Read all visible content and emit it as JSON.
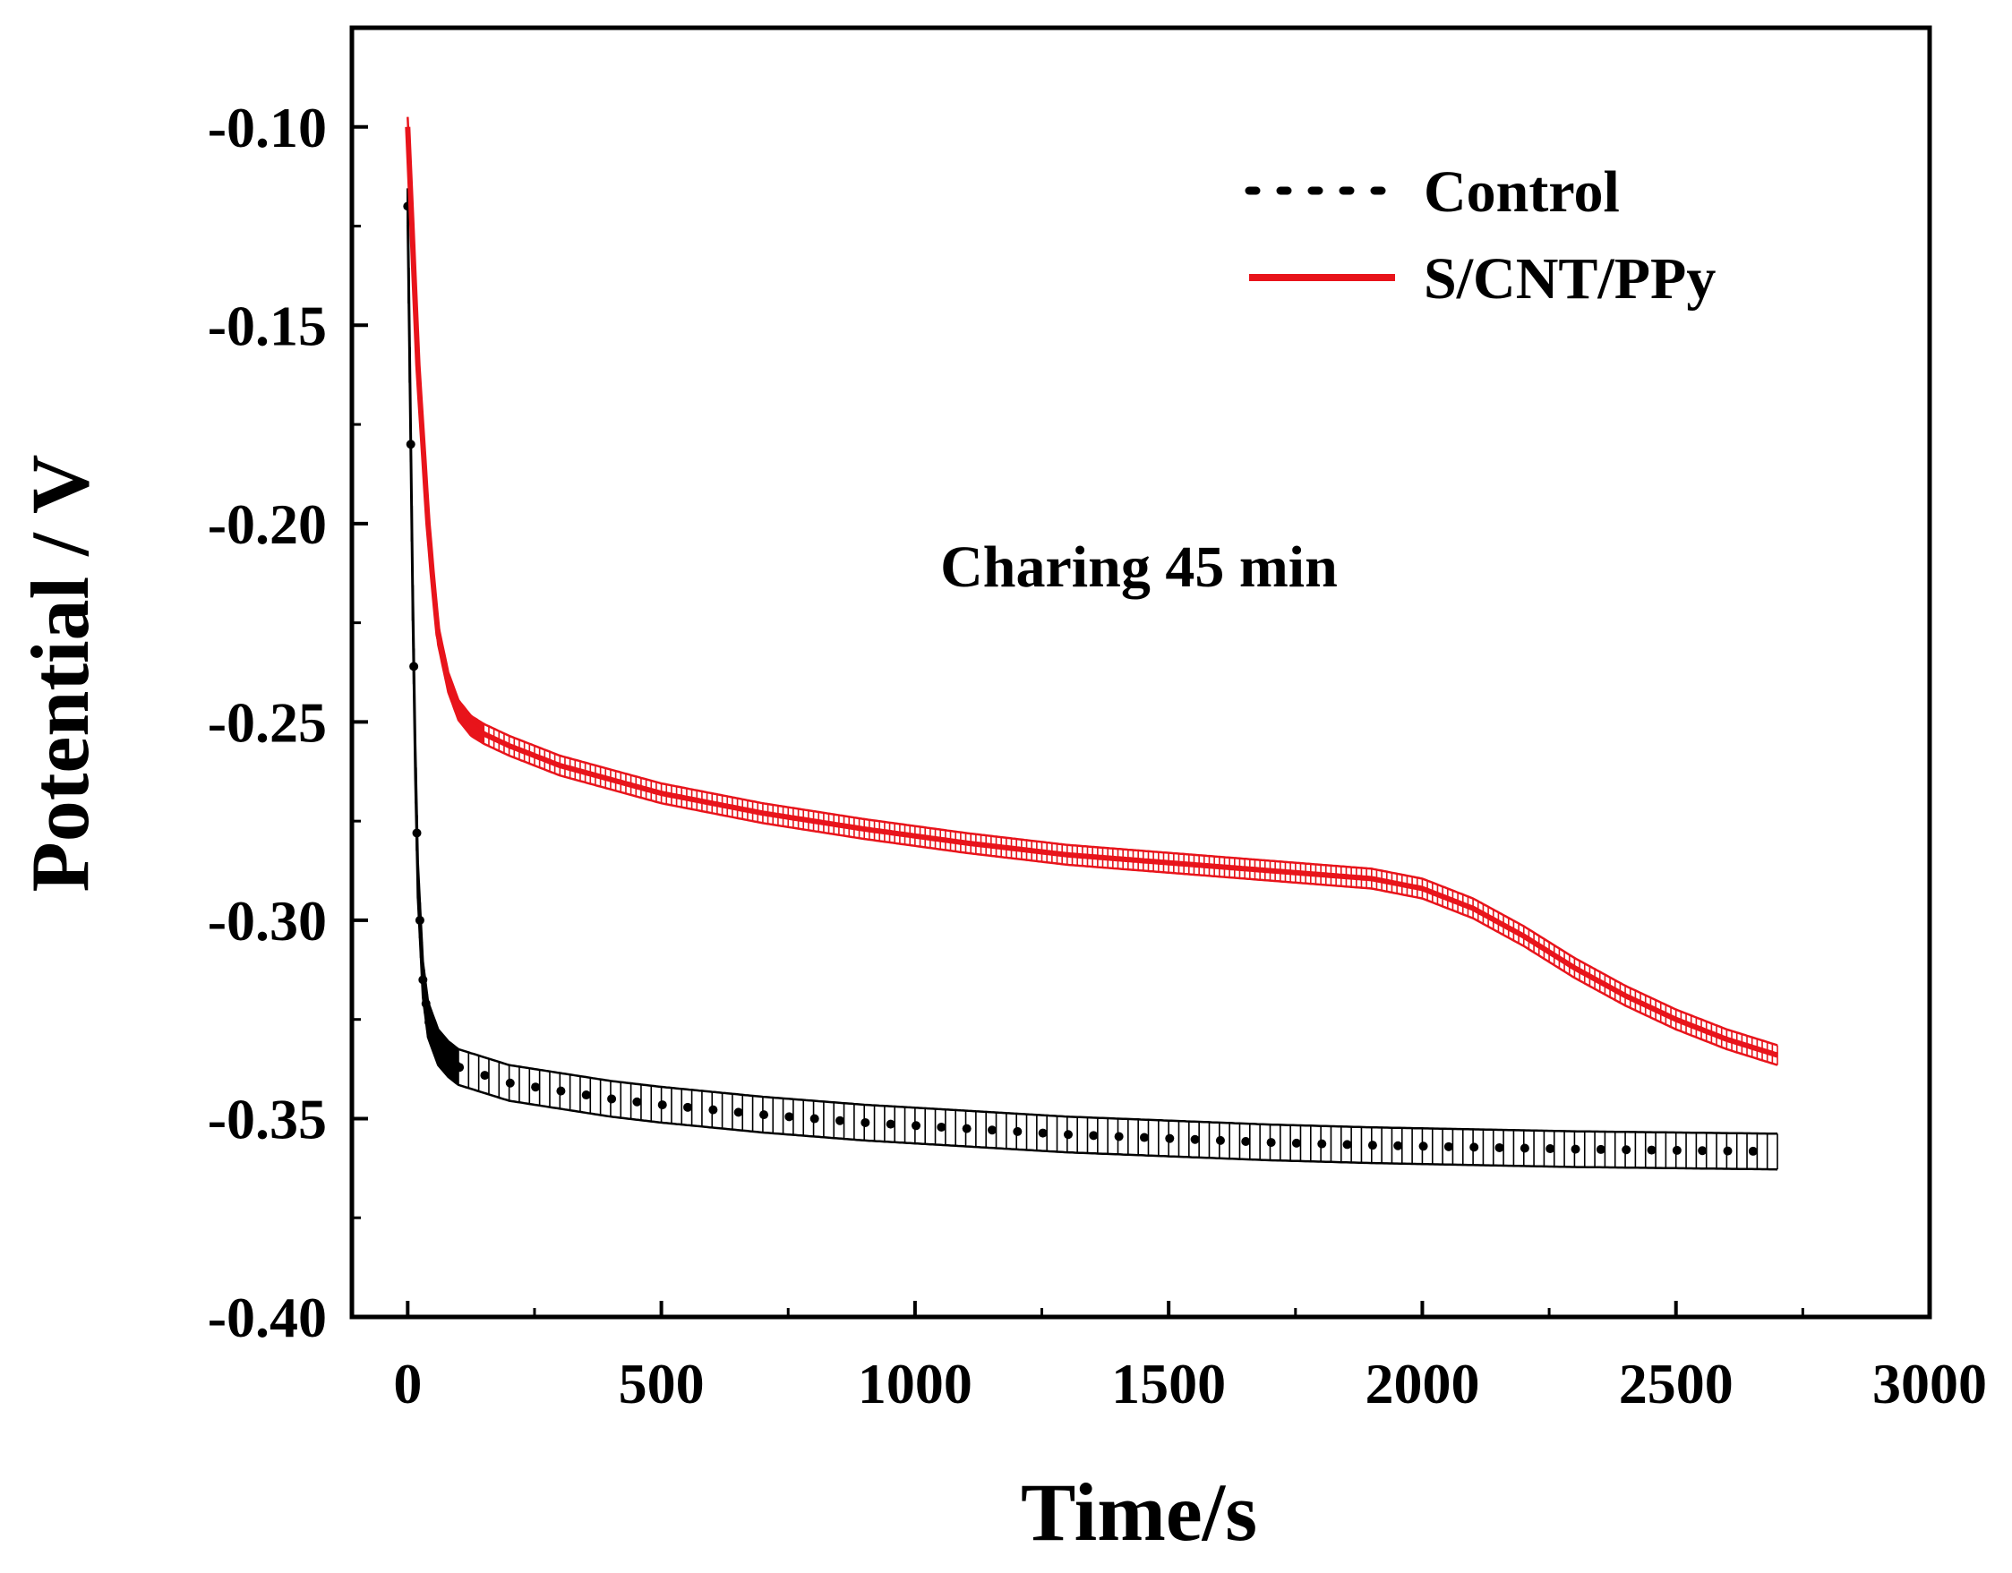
{
  "chart_data": {
    "type": "line",
    "title": "",
    "xlabel": "Time/s",
    "ylabel": "Potential / V",
    "xlim": [
      -110,
      3000
    ],
    "ylim": [
      -0.4,
      -0.075
    ],
    "xticks": [
      0,
      500,
      1000,
      1500,
      2000,
      2500,
      3000
    ],
    "xtick_labels": [
      "0",
      "500",
      "1000",
      "1500",
      "2000",
      "2500",
      "3000"
    ],
    "yticks": [
      -0.4,
      -0.35,
      -0.3,
      -0.25,
      -0.2,
      -0.15,
      -0.1
    ],
    "ytick_labels": [
      "-0.40",
      "-0.35",
      "-0.30",
      "-0.25",
      "-0.20",
      "-0.15",
      "-0.10"
    ],
    "grid": false,
    "legend_position": "top-right",
    "annotation": "Charing 45 min",
    "series": [
      {
        "name": "Control",
        "style": "dotted",
        "color": "#000000",
        "error_band": 0.0045,
        "x": [
          0,
          5,
          10,
          15,
          20,
          30,
          40,
          60,
          80,
          100,
          150,
          200,
          300,
          400,
          500,
          700,
          900,
          1100,
          1300,
          1500,
          1700,
          1900,
          2100,
          2300,
          2500,
          2700
        ],
        "y": [
          -0.12,
          -0.17,
          -0.22,
          -0.26,
          -0.29,
          -0.315,
          -0.325,
          -0.332,
          -0.335,
          -0.337,
          -0.339,
          -0.341,
          -0.343,
          -0.345,
          -0.3465,
          -0.349,
          -0.351,
          -0.3525,
          -0.354,
          -0.355,
          -0.356,
          -0.3567,
          -0.3572,
          -0.3577,
          -0.358,
          -0.3583
        ]
      },
      {
        "name": "S/CNT/PPy",
        "style": "solid",
        "color": "#e8141b",
        "error_band": 0.0025,
        "x": [
          0,
          10,
          20,
          30,
          40,
          50,
          60,
          80,
          100,
          125,
          150,
          200,
          300,
          400,
          500,
          700,
          900,
          1100,
          1300,
          1500,
          1700,
          1900,
          2000,
          2100,
          2200,
          2300,
          2400,
          2500,
          2600,
          2700
        ],
        "y": [
          -0.1,
          -0.13,
          -0.16,
          -0.18,
          -0.2,
          -0.215,
          -0.228,
          -0.24,
          -0.247,
          -0.251,
          -0.253,
          -0.256,
          -0.261,
          -0.2645,
          -0.268,
          -0.273,
          -0.277,
          -0.2805,
          -0.2835,
          -0.2855,
          -0.2875,
          -0.2895,
          -0.292,
          -0.297,
          -0.304,
          -0.312,
          -0.319,
          -0.325,
          -0.33,
          -0.334
        ]
      }
    ]
  }
}
